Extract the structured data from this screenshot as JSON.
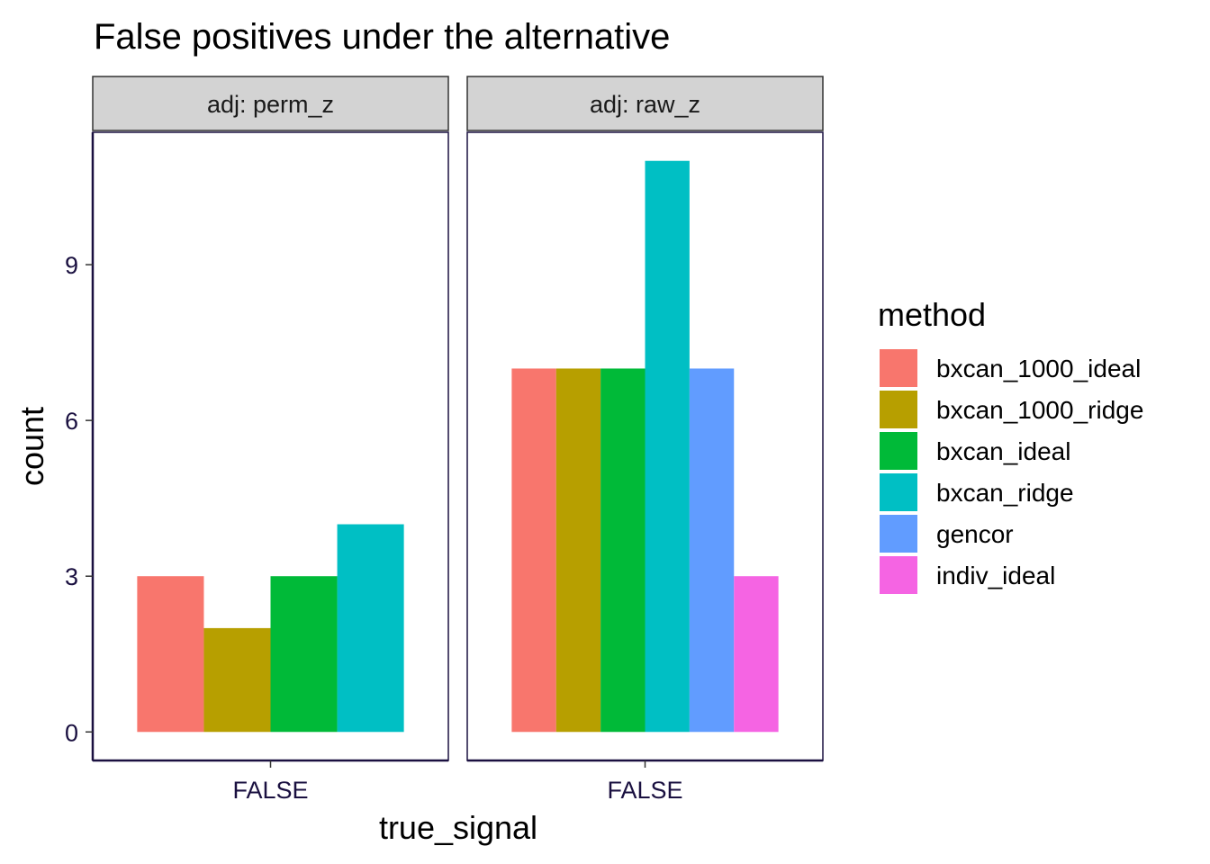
{
  "chart_data": {
    "type": "bar",
    "title": "False positives under the alternative",
    "xlabel": "true_signal",
    "ylabel": "count",
    "ylim": [
      -0.55,
      11.55
    ],
    "yticks": [
      0,
      3,
      6,
      9
    ],
    "x_categories": [
      "FALSE"
    ],
    "grid": false,
    "legend": {
      "title": "method",
      "placement": "right",
      "entries": [
        {
          "name": "bxcan_1000_ideal",
          "color": "#F8766D"
        },
        {
          "name": "bxcan_1000_ridge",
          "color": "#B79F00"
        },
        {
          "name": "bxcan_ideal",
          "color": "#00BA38"
        },
        {
          "name": "bxcan_ridge",
          "color": "#00BFC4"
        },
        {
          "name": "gencor",
          "color": "#619CFF"
        },
        {
          "name": "indiv_ideal",
          "color": "#F564E3"
        }
      ]
    },
    "facets": [
      {
        "label": "adj: perm_z",
        "bars": [
          {
            "method": "bxcan_1000_ideal",
            "x": "FALSE",
            "value": 3
          },
          {
            "method": "bxcan_1000_ridge",
            "x": "FALSE",
            "value": 2
          },
          {
            "method": "bxcan_ideal",
            "x": "FALSE",
            "value": 3
          },
          {
            "method": "bxcan_ridge",
            "x": "FALSE",
            "value": 4
          }
        ]
      },
      {
        "label": "adj: raw_z",
        "bars": [
          {
            "method": "bxcan_1000_ideal",
            "x": "FALSE",
            "value": 7
          },
          {
            "method": "bxcan_1000_ridge",
            "x": "FALSE",
            "value": 7
          },
          {
            "method": "bxcan_ideal",
            "x": "FALSE",
            "value": 7
          },
          {
            "method": "bxcan_ridge",
            "x": "FALSE",
            "value": 11
          },
          {
            "method": "gencor",
            "x": "FALSE",
            "value": 7
          },
          {
            "method": "indiv_ideal",
            "x": "FALSE",
            "value": 3
          }
        ]
      }
    ]
  }
}
